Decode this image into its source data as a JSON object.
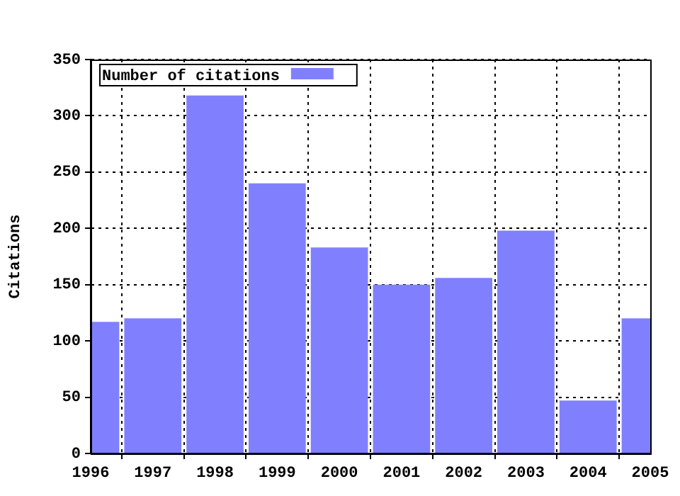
{
  "chart_data": {
    "type": "bar",
    "ylabel": "Citations",
    "x": [
      1996,
      1997,
      1998,
      1999,
      2000,
      2001,
      2002,
      2003,
      2004,
      2005
    ],
    "series": [
      {
        "name": "Number of citations",
        "color": "#8080ff",
        "values": [
          117,
          120,
          318,
          240,
          183,
          150,
          156,
          198,
          47,
          120
        ]
      }
    ],
    "xlim": [
      1996,
      2005
    ],
    "xticks": [
      1996,
      1997,
      1998,
      1999,
      2000,
      2001,
      2002,
      2003,
      2004,
      2005
    ],
    "ylim": [
      0,
      350
    ],
    "yticks": [
      0,
      50,
      100,
      150,
      200,
      250,
      300,
      350
    ],
    "grid": true,
    "legend": "top left"
  }
}
